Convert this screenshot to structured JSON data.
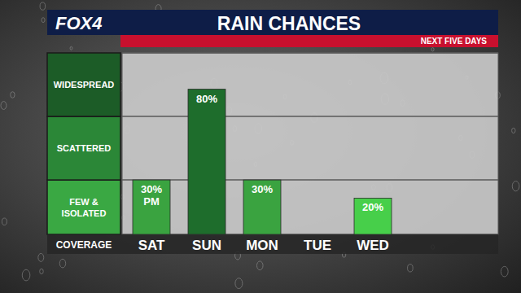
{
  "chart_data": {
    "type": "bar",
    "logo": "FOX4",
    "title": "RAIN CHANCES",
    "subtitle": "NEXT FIVE DAYS",
    "ylabel": "COVERAGE",
    "categories": [
      "SAT",
      "SUN",
      "MON",
      "TUE",
      "WED"
    ],
    "values": [
      30,
      80,
      30,
      null,
      20
    ],
    "value_labels": [
      "30% PM",
      "80%",
      "30%",
      null,
      "20%"
    ],
    "colors": [
      "#3aa340",
      "#1e6d2c",
      "#3aa340",
      null,
      "#47cf4a"
    ],
    "ylim": [
      0,
      100
    ],
    "yticks": [
      0,
      30,
      65,
      100
    ],
    "tick_labels": "x",
    "grid": true,
    "data_labels": true,
    "bands": [
      {
        "label": "FEW & ISOLATED",
        "from": 0,
        "to": 30,
        "color": "#3aa843"
      },
      {
        "label": "SCATTERED",
        "from": 30,
        "to": 65,
        "color": "#2b8737"
      },
      {
        "label": "WIDESPREAD",
        "from": 65,
        "to": 100,
        "color": "#1c5c27"
      }
    ]
  }
}
